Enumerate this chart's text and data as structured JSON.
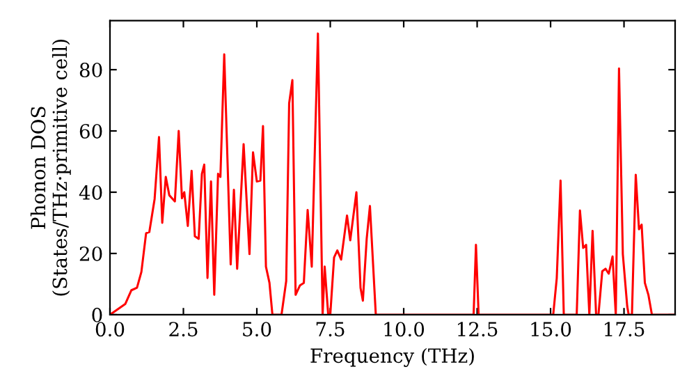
{
  "chart_data": {
    "type": "line",
    "xlabel": "Frequency (THz)",
    "ylabel": "Phonon DOS\n(States/THz·primitive cell)",
    "xlim": [
      0,
      19.24
    ],
    "ylim": [
      0,
      96
    ],
    "xticks": [
      {
        "value": 0,
        "label": "0.0"
      },
      {
        "value": 2.5,
        "label": "2.5"
      },
      {
        "value": 5,
        "label": "5.0"
      },
      {
        "value": 7.5,
        "label": "7.5"
      },
      {
        "value": 10,
        "label": "10.0"
      },
      {
        "value": 12.5,
        "label": "12.5"
      },
      {
        "value": 15,
        "label": "15.0"
      },
      {
        "value": 17.5,
        "label": "17.5"
      }
    ],
    "yticks": [
      0,
      20,
      40,
      60,
      80
    ],
    "grid": false,
    "legend": false,
    "marker": "none",
    "line_style": "solid",
    "series": [
      {
        "color": "#ff0000",
        "x": [
          0,
          0.52,
          0.73,
          0.92,
          1.07,
          1.23,
          1.34,
          1.52,
          1.67,
          1.78,
          1.9,
          2.02,
          2.21,
          2.34,
          2.45,
          2.53,
          2.65,
          2.78,
          2.89,
          3.02,
          3.13,
          3.21,
          3.32,
          3.44,
          3.55,
          3.68,
          3.76,
          3.89,
          4.11,
          4.22,
          4.33,
          4.55,
          4.75,
          4.87,
          5.0,
          5.12,
          5.21,
          5.31,
          5.43,
          5.53,
          5.84,
          6.0,
          6.1,
          6.21,
          6.32,
          6.47,
          6.6,
          6.73,
          6.87,
          7.08,
          7.24,
          7.31,
          7.43,
          7.5,
          7.63,
          7.74,
          7.87,
          8.07,
          8.18,
          8.39,
          8.53,
          8.61,
          8.74,
          8.85,
          9.05,
          12.38,
          12.46,
          12.55,
          15.09,
          15.21,
          15.34,
          15.45,
          15.89,
          16.0,
          16.11,
          16.21,
          16.32,
          16.43,
          16.55,
          16.63,
          16.76,
          16.87,
          16.98,
          17.11,
          17.22,
          17.33,
          17.46,
          17.61,
          17.66,
          17.77,
          17.9,
          18.01,
          18.1,
          18.21,
          18.33,
          18.45,
          19.24
        ],
        "values": [
          0,
          3.5,
          8,
          8.8,
          14,
          26.6,
          27,
          37.8,
          58,
          30,
          45,
          39,
          37,
          60,
          38,
          40,
          29,
          47,
          25.6,
          24.8,
          46,
          49,
          12,
          43.5,
          6.5,
          46,
          45,
          85,
          16.4,
          40.8,
          15,
          55.7,
          19.8,
          53,
          43.5,
          43.8,
          61.6,
          15.7,
          10.4,
          0,
          0,
          11,
          69,
          76.6,
          6.5,
          9.6,
          10.4,
          34.2,
          15.7,
          91.8,
          0,
          15.7,
          0,
          0,
          18.7,
          21,
          18,
          32.4,
          24.3,
          40,
          8.8,
          4.6,
          24.8,
          35.5,
          0,
          0,
          22.8,
          0,
          0,
          11.9,
          43.8,
          0,
          0,
          34,
          21.8,
          22.8,
          0,
          27.4,
          0,
          0,
          14.2,
          15,
          13.4,
          19,
          0,
          80.4,
          19.8,
          2.7,
          0,
          0,
          45.7,
          27.9,
          29.4,
          10.4,
          6.5,
          0,
          0
        ]
      }
    ]
  }
}
